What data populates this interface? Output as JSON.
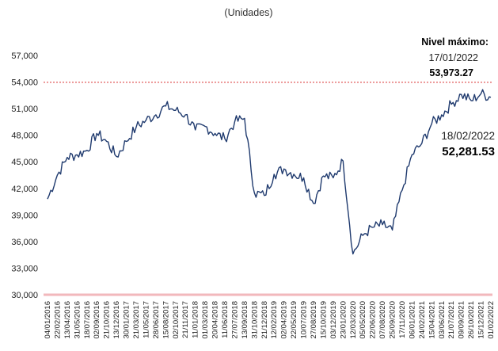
{
  "chart_data": {
    "type": "line",
    "subtitle": "(Unidades)",
    "title": "",
    "xlabel": "",
    "ylabel": "",
    "ylim": [
      30000,
      57000
    ],
    "yticks": [
      "30,000",
      "33,000",
      "36,000",
      "39,000",
      "42,000",
      "45,000",
      "48,000",
      "51,000",
      "54,000",
      "57,000"
    ],
    "ytick_values": [
      30000,
      33000,
      36000,
      39000,
      42000,
      45000,
      48000,
      51000,
      54000,
      57000
    ],
    "xticks": [
      "04/01/2016",
      "22/02/2016",
      "13/04/2016",
      "31/05/2016",
      "18/07/2016",
      "02/09/2016",
      "21/10/2016",
      "13/12/2016",
      "30/01/2017",
      "21/03/2017",
      "11/05/2017",
      "28/06/2017",
      "15/08/2017",
      "02/10/2017",
      "21/11/2017",
      "11/01/2018",
      "01/03/2018",
      "20/04/2018",
      "11/06/2018",
      "27/07/2018",
      "13/09/2018",
      "31/10/2018",
      "21/12/2018",
      "12/02/2019",
      "02/04/2019",
      "22/05/2019",
      "10/07/2019",
      "27/08/2019",
      "15/10/2019",
      "03/12/2019",
      "23/01/2020",
      "12/03/2020",
      "05/05/2020",
      "22/06/2020",
      "07/08/2020",
      "25/09/2020",
      "17/11/2020",
      "06/01/2021",
      "24/02/2021",
      "15/04/2021",
      "03/06/2021",
      "21/07/2021",
      "09/09/2021",
      "26/10/2021",
      "15/12/2021",
      "01/02/2022"
    ],
    "reference_line": {
      "value": 53973.27,
      "color": "#e05a5a",
      "style": "dotted"
    },
    "base_line": {
      "value": 30000,
      "color": "#f2b8bc"
    },
    "series": [
      {
        "color": "#1f3a6e",
        "x": [
          "04/01/2016",
          "22/02/2016",
          "13/04/2016",
          "31/05/2016",
          "18/07/2016",
          "02/09/2016",
          "21/10/2016",
          "13/12/2016",
          "30/01/2017",
          "21/03/2017",
          "11/05/2017",
          "28/06/2017",
          "15/08/2017",
          "02/10/2017",
          "21/11/2017",
          "11/01/2018",
          "01/03/2018",
          "20/04/2018",
          "11/06/2018",
          "27/07/2018",
          "13/09/2018",
          "31/10/2018",
          "21/12/2018",
          "12/02/2019",
          "02/04/2019",
          "22/05/2019",
          "10/07/2019",
          "27/08/2019",
          "15/10/2019",
          "03/12/2019",
          "23/01/2020",
          "12/03/2020",
          "05/05/2020",
          "22/06/2020",
          "07/08/2020",
          "25/09/2020",
          "17/11/2020",
          "06/01/2021",
          "24/02/2021",
          "15/04/2021",
          "03/06/2021",
          "21/07/2021",
          "09/09/2021",
          "26/10/2021",
          "15/12/2021",
          "01/02/2022"
        ],
        "y": [
          40800,
          43500,
          45500,
          45800,
          46300,
          48200,
          47300,
          45600,
          47300,
          48900,
          49700,
          50300,
          51300,
          50800,
          50300,
          48600,
          49000,
          48200,
          47600,
          49500,
          49900,
          41500,
          41200,
          43600,
          44200,
          43600,
          43200,
          40300,
          43400,
          43200,
          45100,
          34600,
          36700,
          37600,
          37900,
          37300,
          41800,
          45800,
          47100,
          49300,
          50300,
          51500,
          52600,
          51900,
          52700,
          52281.53
        ]
      }
    ],
    "points_per_segment": 6
  },
  "annotations": {
    "max_label": "Nivel máximo:",
    "max_date": "17/01/2022",
    "max_value": "53,973.27",
    "last_date": "18/02/2022",
    "last_value": "52,281.53"
  }
}
